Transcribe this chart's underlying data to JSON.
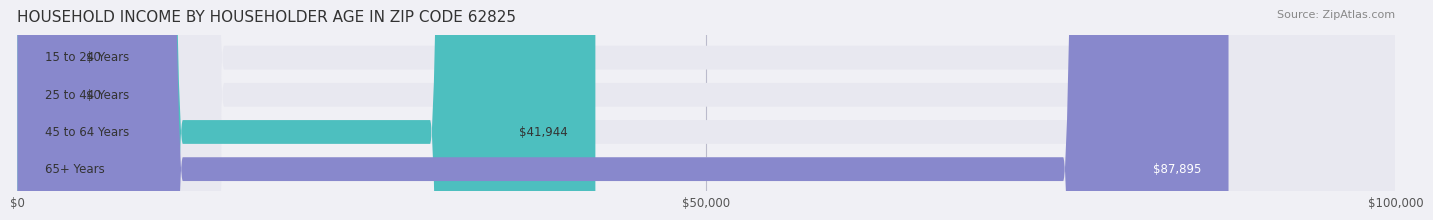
{
  "title": "HOUSEHOLD INCOME BY HOUSEHOLDER AGE IN ZIP CODE 62825",
  "source": "Source: ZipAtlas.com",
  "categories": [
    "15 to 24 Years",
    "25 to 44 Years",
    "45 to 64 Years",
    "65+ Years"
  ],
  "values": [
    0,
    0,
    41944,
    87895
  ],
  "bar_colors": [
    "#7eb8d4",
    "#c9a8d4",
    "#4dbfbf",
    "#8888cc"
  ],
  "label_colors": [
    "#333333",
    "#333333",
    "#333333",
    "#ffffff"
  ],
  "value_labels": [
    "$0",
    "$0",
    "$41,944",
    "$87,895"
  ],
  "xlim": [
    0,
    100000
  ],
  "xticks": [
    0,
    50000,
    100000
  ],
  "xtick_labels": [
    "$0",
    "$50,000",
    "$100,000"
  ],
  "background_color": "#f0f0f5",
  "bar_bg_color": "#e8e8f0",
  "title_fontsize": 11,
  "source_fontsize": 8,
  "label_fontsize": 8.5,
  "tick_fontsize": 8.5
}
